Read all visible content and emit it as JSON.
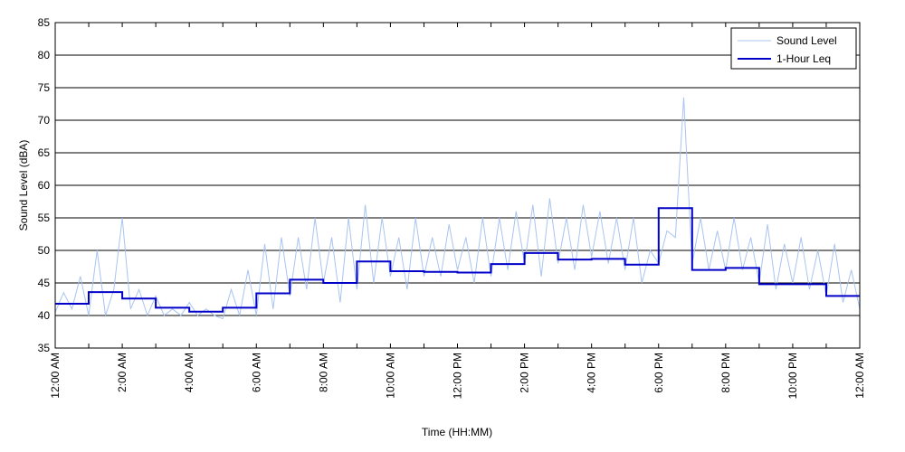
{
  "chart_data": {
    "type": "line",
    "title": "",
    "xlabel": "Time (HH:MM)",
    "ylabel": "Sound Level (dBA)",
    "ylim": [
      35,
      85
    ],
    "yticks": [
      35,
      40,
      45,
      50,
      55,
      60,
      65,
      70,
      75,
      80,
      85
    ],
    "xlim_hours": [
      0,
      24
    ],
    "xtick_hours": [
      0,
      2,
      4,
      6,
      8,
      10,
      12,
      14,
      16,
      18,
      20,
      22,
      24
    ],
    "xtick_labels": [
      "12:00 AM",
      "2:00 AM",
      "4:00 AM",
      "6:00 AM",
      "8:00 AM",
      "10:00 AM",
      "12:00 PM",
      "2:00 PM",
      "4:00 PM",
      "6:00 PM",
      "8:00 PM",
      "10:00 PM",
      "12:00 AM"
    ],
    "grid": "horizontal",
    "legend": "top-right",
    "series": [
      {
        "name": "Sound Level",
        "color": "#a8c4f0",
        "style": "thin-line",
        "x_hours": [
          0,
          0.25,
          0.5,
          0.75,
          1,
          1.25,
          1.5,
          1.75,
          2,
          2.25,
          2.5,
          2.75,
          3,
          3.25,
          3.5,
          3.75,
          4,
          4.25,
          4.5,
          4.75,
          5,
          5.25,
          5.5,
          5.75,
          6,
          6.25,
          6.5,
          6.75,
          7,
          7.25,
          7.5,
          7.75,
          8,
          8.25,
          8.5,
          8.75,
          9,
          9.25,
          9.5,
          9.75,
          10,
          10.25,
          10.5,
          10.75,
          11,
          11.25,
          11.5,
          11.75,
          12,
          12.25,
          12.5,
          12.75,
          13,
          13.25,
          13.5,
          13.75,
          14,
          14.25,
          14.5,
          14.75,
          15,
          15.25,
          15.5,
          15.75,
          16,
          16.25,
          16.5,
          16.75,
          17,
          17.25,
          17.5,
          17.75,
          18,
          18.25,
          18.5,
          18.75,
          19,
          19.25,
          19.5,
          19.75,
          20,
          20.25,
          20.5,
          20.75,
          21,
          21.25,
          21.5,
          21.75,
          22,
          22.25,
          22.5,
          22.75,
          23,
          23.25,
          23.5,
          23.75,
          24
        ],
        "values": [
          40.5,
          43.5,
          41,
          46,
          40,
          50,
          40,
          44,
          55,
          41,
          44,
          40,
          43,
          40,
          41,
          40,
          42,
          40,
          41,
          40,
          39.5,
          44,
          40,
          47,
          40,
          51,
          41,
          52,
          43,
          52,
          44,
          55,
          45,
          52,
          42,
          55,
          44,
          57,
          45,
          55,
          46,
          52,
          44,
          55,
          46,
          52,
          46,
          54,
          47,
          52,
          45,
          55,
          46,
          55,
          47,
          56,
          48,
          57,
          46,
          58,
          48,
          55,
          47,
          57,
          49,
          56,
          48,
          55,
          47,
          55,
          45,
          50,
          48,
          53,
          52,
          73.5,
          48,
          55,
          47,
          53,
          47,
          55,
          47,
          52,
          45,
          54,
          44,
          51,
          45,
          52,
          44,
          50,
          43,
          51,
          42,
          47,
          41
        ]
      },
      {
        "name": "1-Hour Leq",
        "color": "#0000c8",
        "style": "step",
        "x_hours": [
          0,
          1,
          2,
          3,
          4,
          5,
          6,
          7,
          8,
          9,
          10,
          11,
          12,
          13,
          14,
          15,
          16,
          17,
          18,
          19,
          20,
          21,
          22,
          23
        ],
        "values": [
          41.8,
          43.6,
          42.6,
          41.2,
          40.6,
          41.2,
          43.4,
          45.5,
          45.0,
          48.3,
          46.8,
          46.7,
          46.6,
          47.9,
          49.6,
          48.6,
          48.7,
          47.8,
          56.5,
          47.0,
          47.3,
          44.8,
          44.8,
          43.0
        ]
      }
    ]
  }
}
